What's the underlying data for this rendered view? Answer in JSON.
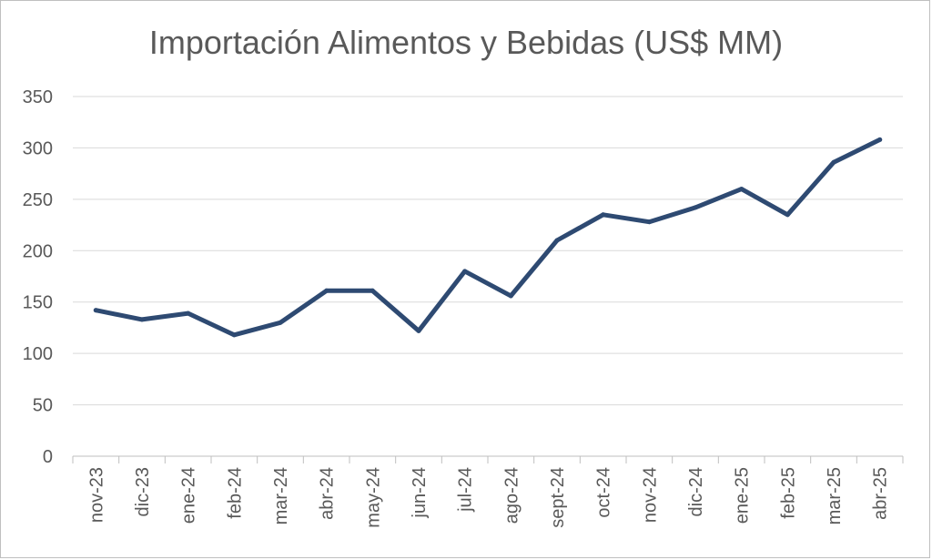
{
  "chart_data": {
    "type": "line",
    "title": "Importación Alimentos y Bebidas (US$ MM)",
    "xlabel": "",
    "ylabel": "",
    "categories": [
      "nov-23",
      "dic-23",
      "ene-24",
      "feb-24",
      "mar-24",
      "abr-24",
      "may-24",
      "jun-24",
      "jul-24",
      "ago-24",
      "sept-24",
      "oct-24",
      "nov-24",
      "dic-24",
      "ene-25",
      "feb-25",
      "mar-25",
      "abr-25"
    ],
    "series": [
      {
        "name": "",
        "color": "#2e4a72",
        "values": [
          142,
          133,
          139,
          118,
          130,
          161,
          161,
          122,
          180,
          156,
          210,
          235,
          228,
          242,
          260,
          235,
          286,
          308
        ]
      }
    ],
    "ylim": [
      0,
      350
    ],
    "yticks": [
      0,
      50,
      100,
      150,
      200,
      250,
      300,
      350
    ],
    "grid": true,
    "legend": "none"
  }
}
